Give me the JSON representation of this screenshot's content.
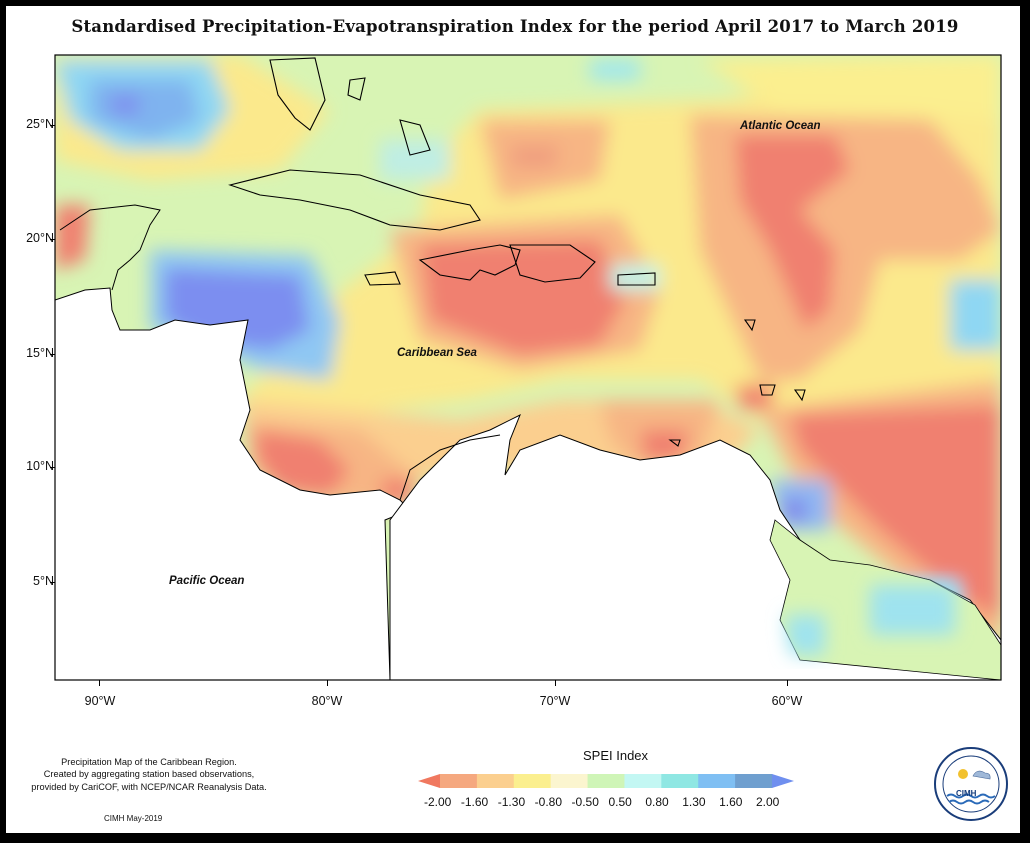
{
  "title": "Standardised Precipitation-Evapotranspiration Index for the period April 2017 to March 2019",
  "axes": {
    "lat_labels": [
      "25°N",
      "20°N",
      "15°N",
      "10°N",
      "5°N"
    ],
    "lon_labels": [
      "90°W",
      "80°W",
      "70°W",
      "60°W"
    ]
  },
  "labels": {
    "atlantic": "Atlantic Ocean",
    "caribbean": "Caribbean Sea",
    "pacific": "Pacific Ocean"
  },
  "legend": {
    "title": "SPEI Index",
    "values": [
      "-2.00",
      "-1.60",
      "-1.30",
      "-0.80",
      "-0.50",
      "0.50",
      "0.80",
      "1.30",
      "1.60",
      "2.00"
    ],
    "colors": [
      "#f0785f",
      "#f5a87f",
      "#fbcf8f",
      "#fbef8f",
      "#fbf5cf",
      "#cff5b7",
      "#c3f7f3",
      "#8fe7e3",
      "#7fbff3",
      "#6f9fcf",
      "#6f8fef"
    ]
  },
  "footnote": {
    "line1": "Precipitation Map of the Caribbean Region.",
    "line2": "Created by aggregating station based observations,",
    "line3": "provided by CariCOF, with NCEP/NCAR Reanalysis Data."
  },
  "credit": "CIMH May-2019",
  "logo": {
    "text": "CIMH"
  }
}
